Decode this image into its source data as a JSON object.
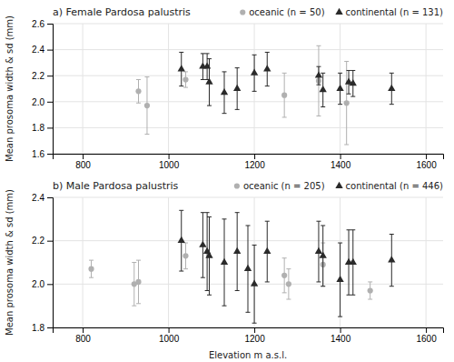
{
  "chart_data": [
    {
      "type": "scatter",
      "title": "a) Female Pardosa palustris",
      "ylabel": "Mean prosoma width & sd (mm)",
      "xlim": [
        730,
        1640
      ],
      "xticks": [
        800,
        1000,
        1200,
        1400,
        1600
      ],
      "ylim": [
        1.6,
        2.6
      ],
      "yticks": [
        1.6,
        1.8,
        {
          "value": 2.0,
          "label": "2.0"
        },
        2.2,
        2.4,
        2.6
      ],
      "grid": true,
      "legend": "upper right",
      "series": [
        {
          "name": "oceanic (n = 50)",
          "color": "#b0b0b0",
          "marker": "circle",
          "x": [
            930,
            950,
            1040,
            1270,
            1350,
            1415
          ],
          "values": [
            2.08,
            1.97,
            2.17,
            2.05,
            2.16,
            1.99
          ],
          "error": [
            0.09,
            0.22,
            0.06,
            0.17,
            0.27,
            0.32
          ]
        },
        {
          "name": "continental (n = 131)",
          "color": "#2a2a2a",
          "marker": "triangle",
          "x": [
            1030,
            1080,
            1090,
            1095,
            1130,
            1160,
            1200,
            1230,
            1350,
            1360,
            1400,
            1420,
            1430,
            1520
          ],
          "values": [
            2.25,
            2.27,
            2.27,
            2.15,
            2.07,
            2.1,
            2.22,
            2.25,
            2.2,
            2.09,
            2.1,
            2.15,
            2.14,
            2.1
          ],
          "error": [
            0.13,
            0.1,
            0.1,
            0.18,
            0.16,
            0.16,
            0.14,
            0.13,
            0.07,
            0.13,
            0.12,
            0.09,
            0.1,
            0.12
          ]
        }
      ]
    },
    {
      "type": "scatter",
      "title": "b) Male Pardosa palustris",
      "xlabel": "Elevation m a.s.l.",
      "ylabel": "Mean prosoma width & sd (mm)",
      "xlim": [
        730,
        1640
      ],
      "xticks": [
        800,
        1000,
        1200,
        1400,
        1600
      ],
      "ylim": [
        1.8,
        2.4
      ],
      "yticks": [
        1.8,
        {
          "value": 2.0,
          "label": "2.0"
        },
        2.2,
        2.4
      ],
      "grid": true,
      "legend": "upper right",
      "series": [
        {
          "name": "oceanic (n = 205)",
          "color": "#b0b0b0",
          "marker": "circle",
          "x": [
            820,
            920,
            930,
            1040,
            1270,
            1280,
            1360,
            1470
          ],
          "values": [
            2.07,
            2.0,
            2.01,
            2.13,
            2.04,
            2.0,
            2.09,
            1.97
          ],
          "error": [
            0.04,
            0.1,
            0.1,
            0.06,
            0.08,
            0.07,
            0.1,
            0.04
          ]
        },
        {
          "name": "continental (n = 446)",
          "color": "#2a2a2a",
          "marker": "triangle",
          "x": [
            1030,
            1080,
            1090,
            1095,
            1130,
            1160,
            1185,
            1200,
            1230,
            1350,
            1360,
            1400,
            1420,
            1430,
            1520
          ],
          "values": [
            2.2,
            2.18,
            2.15,
            2.13,
            2.1,
            2.15,
            2.07,
            2.0,
            2.15,
            2.15,
            2.13,
            2.02,
            2.1,
            2.1,
            2.11
          ],
          "error": [
            0.14,
            0.15,
            0.18,
            0.18,
            0.2,
            0.18,
            0.2,
            0.18,
            0.14,
            0.14,
            0.14,
            0.17,
            0.15,
            0.15,
            0.12
          ]
        }
      ]
    }
  ]
}
